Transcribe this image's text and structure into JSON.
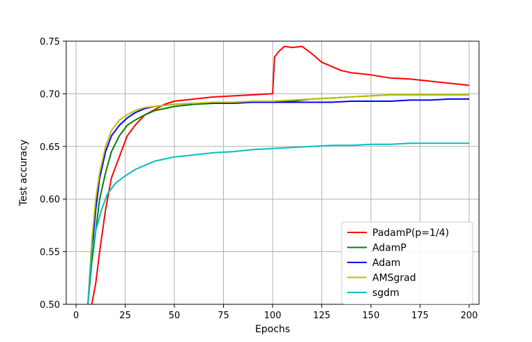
{
  "chart_data": {
    "type": "line",
    "title": "",
    "xlabel": "Epochs",
    "ylabel": "Test accuracy",
    "xlim": [
      -5,
      205
    ],
    "ylim": [
      0.5,
      0.75
    ],
    "xticks": [
      0,
      25,
      50,
      75,
      100,
      125,
      150,
      175,
      200
    ],
    "yticks": [
      0.5,
      0.55,
      0.6,
      0.65,
      0.7,
      0.75
    ],
    "xtick_labels": [
      "0",
      "25",
      "50",
      "75",
      "100",
      "125",
      "150",
      "175",
      "200"
    ],
    "ytick_labels": [
      "0.50",
      "0.55",
      "0.60",
      "0.65",
      "0.70",
      "0.75"
    ],
    "grid": true,
    "legend_position": "lower-right",
    "series": [
      {
        "name": "PadamP(p=1/4)",
        "color": "#ff0000",
        "points": [
          [
            8,
            0.5
          ],
          [
            10,
            0.52
          ],
          [
            12,
            0.55
          ],
          [
            15,
            0.59
          ],
          [
            18,
            0.62
          ],
          [
            22,
            0.64
          ],
          [
            26,
            0.66
          ],
          [
            30,
            0.67
          ],
          [
            35,
            0.68
          ],
          [
            40,
            0.685
          ],
          [
            45,
            0.69
          ],
          [
            50,
            0.693
          ],
          [
            60,
            0.695
          ],
          [
            70,
            0.697
          ],
          [
            80,
            0.698
          ],
          [
            90,
            0.699
          ],
          [
            99,
            0.7
          ],
          [
            100,
            0.7
          ],
          [
            101,
            0.735
          ],
          [
            103,
            0.74
          ],
          [
            106,
            0.745
          ],
          [
            110,
            0.744
          ],
          [
            115,
            0.745
          ],
          [
            120,
            0.738
          ],
          [
            125,
            0.73
          ],
          [
            130,
            0.726
          ],
          [
            135,
            0.722
          ],
          [
            140,
            0.72
          ],
          [
            150,
            0.718
          ],
          [
            160,
            0.715
          ],
          [
            170,
            0.714
          ],
          [
            180,
            0.712
          ],
          [
            190,
            0.71
          ],
          [
            200,
            0.708
          ]
        ]
      },
      {
        "name": "AdamP",
        "color": "#008000",
        "points": [
          [
            6,
            0.5
          ],
          [
            8,
            0.54
          ],
          [
            10,
            0.57
          ],
          [
            12,
            0.6
          ],
          [
            15,
            0.625
          ],
          [
            18,
            0.645
          ],
          [
            22,
            0.66
          ],
          [
            26,
            0.67
          ],
          [
            30,
            0.675
          ],
          [
            35,
            0.68
          ],
          [
            40,
            0.684
          ],
          [
            45,
            0.686
          ],
          [
            50,
            0.688
          ],
          [
            60,
            0.69
          ],
          [
            70,
            0.691
          ],
          [
            80,
            0.692
          ],
          [
            90,
            0.692
          ],
          [
            100,
            0.693
          ],
          [
            110,
            0.693
          ],
          [
            120,
            0.695
          ],
          [
            130,
            0.696
          ],
          [
            140,
            0.697
          ],
          [
            150,
            0.698
          ],
          [
            160,
            0.699
          ],
          [
            170,
            0.699
          ],
          [
            180,
            0.699
          ],
          [
            190,
            0.699
          ],
          [
            200,
            0.699
          ]
        ]
      },
      {
        "name": "Adam",
        "color": "#0000ff",
        "points": [
          [
            6,
            0.5
          ],
          [
            8,
            0.55
          ],
          [
            10,
            0.59
          ],
          [
            12,
            0.62
          ],
          [
            15,
            0.645
          ],
          [
            18,
            0.66
          ],
          [
            22,
            0.67
          ],
          [
            26,
            0.677
          ],
          [
            30,
            0.682
          ],
          [
            35,
            0.686
          ],
          [
            40,
            0.688
          ],
          [
            45,
            0.689
          ],
          [
            50,
            0.69
          ],
          [
            60,
            0.691
          ],
          [
            70,
            0.691
          ],
          [
            80,
            0.691
          ],
          [
            90,
            0.692
          ],
          [
            100,
            0.692
          ],
          [
            110,
            0.692
          ],
          [
            120,
            0.692
          ],
          [
            130,
            0.692
          ],
          [
            140,
            0.693
          ],
          [
            150,
            0.693
          ],
          [
            160,
            0.693
          ],
          [
            170,
            0.694
          ],
          [
            180,
            0.694
          ],
          [
            190,
            0.695
          ],
          [
            200,
            0.695
          ]
        ]
      },
      {
        "name": "AMSgrad",
        "color": "#bfbf00",
        "points": [
          [
            6,
            0.5
          ],
          [
            8,
            0.56
          ],
          [
            10,
            0.6
          ],
          [
            12,
            0.625
          ],
          [
            15,
            0.65
          ],
          [
            18,
            0.665
          ],
          [
            22,
            0.675
          ],
          [
            26,
            0.68
          ],
          [
            30,
            0.684
          ],
          [
            35,
            0.687
          ],
          [
            40,
            0.688
          ],
          [
            45,
            0.689
          ],
          [
            50,
            0.69
          ],
          [
            60,
            0.691
          ],
          [
            70,
            0.692
          ],
          [
            80,
            0.692
          ],
          [
            90,
            0.693
          ],
          [
            100,
            0.693
          ],
          [
            110,
            0.694
          ],
          [
            120,
            0.695
          ],
          [
            130,
            0.696
          ],
          [
            140,
            0.697
          ],
          [
            150,
            0.698
          ],
          [
            160,
            0.699
          ],
          [
            170,
            0.699
          ],
          [
            180,
            0.699
          ],
          [
            190,
            0.699
          ],
          [
            200,
            0.699
          ]
        ]
      },
      {
        "name": "sgdm",
        "color": "#00bfbf",
        "points": [
          [
            6,
            0.5
          ],
          [
            8,
            0.55
          ],
          [
            10,
            0.57
          ],
          [
            13,
            0.59
          ],
          [
            16,
            0.605
          ],
          [
            20,
            0.615
          ],
          [
            25,
            0.622
          ],
          [
            30,
            0.628
          ],
          [
            35,
            0.632
          ],
          [
            40,
            0.636
          ],
          [
            45,
            0.638
          ],
          [
            50,
            0.64
          ],
          [
            60,
            0.642
          ],
          [
            70,
            0.644
          ],
          [
            80,
            0.645
          ],
          [
            90,
            0.647
          ],
          [
            100,
            0.648
          ],
          [
            110,
            0.649
          ],
          [
            120,
            0.65
          ],
          [
            130,
            0.651
          ],
          [
            140,
            0.651
          ],
          [
            150,
            0.652
          ],
          [
            160,
            0.652
          ],
          [
            170,
            0.653
          ],
          [
            180,
            0.653
          ],
          [
            190,
            0.653
          ],
          [
            200,
            0.653
          ]
        ]
      }
    ]
  }
}
